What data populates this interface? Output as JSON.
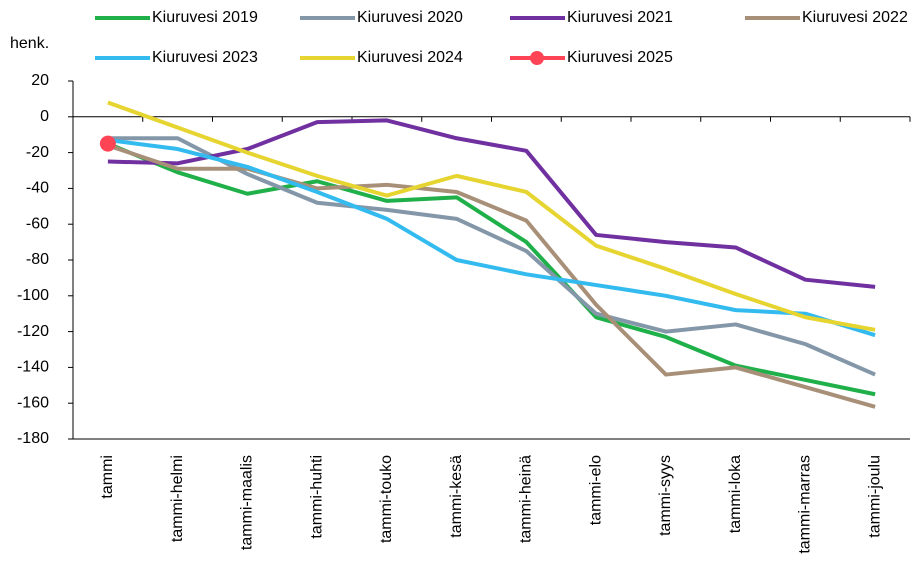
{
  "chart_data": {
    "type": "line",
    "y_unit": "henk.",
    "categories": [
      "tammi",
      "tammi-helmi",
      "tammi-maalis",
      "tammi-huhti",
      "tammi-touko",
      "tammi-kesä",
      "tammi-heinä",
      "tammi-elo",
      "tammi-syys",
      "tammi-loka",
      "tammi-marras",
      "tammi-joulu"
    ],
    "series": [
      {
        "name": "Kiuruvesi 2019",
        "color": "#1fb04a",
        "values": [
          -15,
          -31,
          -43,
          -36,
          -47,
          -45,
          -70,
          -112,
          -123,
          -139,
          -147,
          -155
        ]
      },
      {
        "name": "Kiuruvesi 2020",
        "color": "#8497a9",
        "values": [
          -12,
          -12,
          -32,
          -48,
          -52,
          -57,
          -75,
          -110,
          -120,
          -116,
          -127,
          -144
        ]
      },
      {
        "name": "Kiuruvesi 2021",
        "color": "#7030a0",
        "values": [
          -25,
          -26,
          -18,
          -3,
          -2,
          -12,
          -19,
          -66,
          -70,
          -73,
          -91,
          -95
        ]
      },
      {
        "name": "Kiuruvesi 2022",
        "color": "#a89078",
        "values": [
          -16,
          -29,
          -29,
          -40,
          -38,
          -42,
          -58,
          -105,
          -144,
          -140,
          -151,
          -162
        ]
      },
      {
        "name": "Kiuruvesi 2023",
        "color": "#33bbf0",
        "values": [
          -13,
          -18,
          -28,
          -42,
          -57,
          -80,
          -88,
          -94,
          -100,
          -108,
          -110,
          -122
        ]
      },
      {
        "name": "Kiuruvesi 2024",
        "color": "#e6d430",
        "values": [
          8,
          -6,
          -20,
          -33,
          -44,
          -33,
          -42,
          -72,
          -85,
          -99,
          -112,
          -119
        ]
      },
      {
        "name": "Kiuruvesi 2025",
        "color": "#ff4455",
        "marker": true,
        "values": [
          -15,
          null,
          null,
          null,
          null,
          null,
          null,
          null,
          null,
          null,
          null,
          null
        ]
      }
    ],
    "ylim": [
      -180,
      20
    ],
    "yticks": [
      20,
      0,
      -20,
      -40,
      -60,
      -80,
      -100,
      -120,
      -140,
      -160,
      -180
    ],
    "grid": false
  }
}
